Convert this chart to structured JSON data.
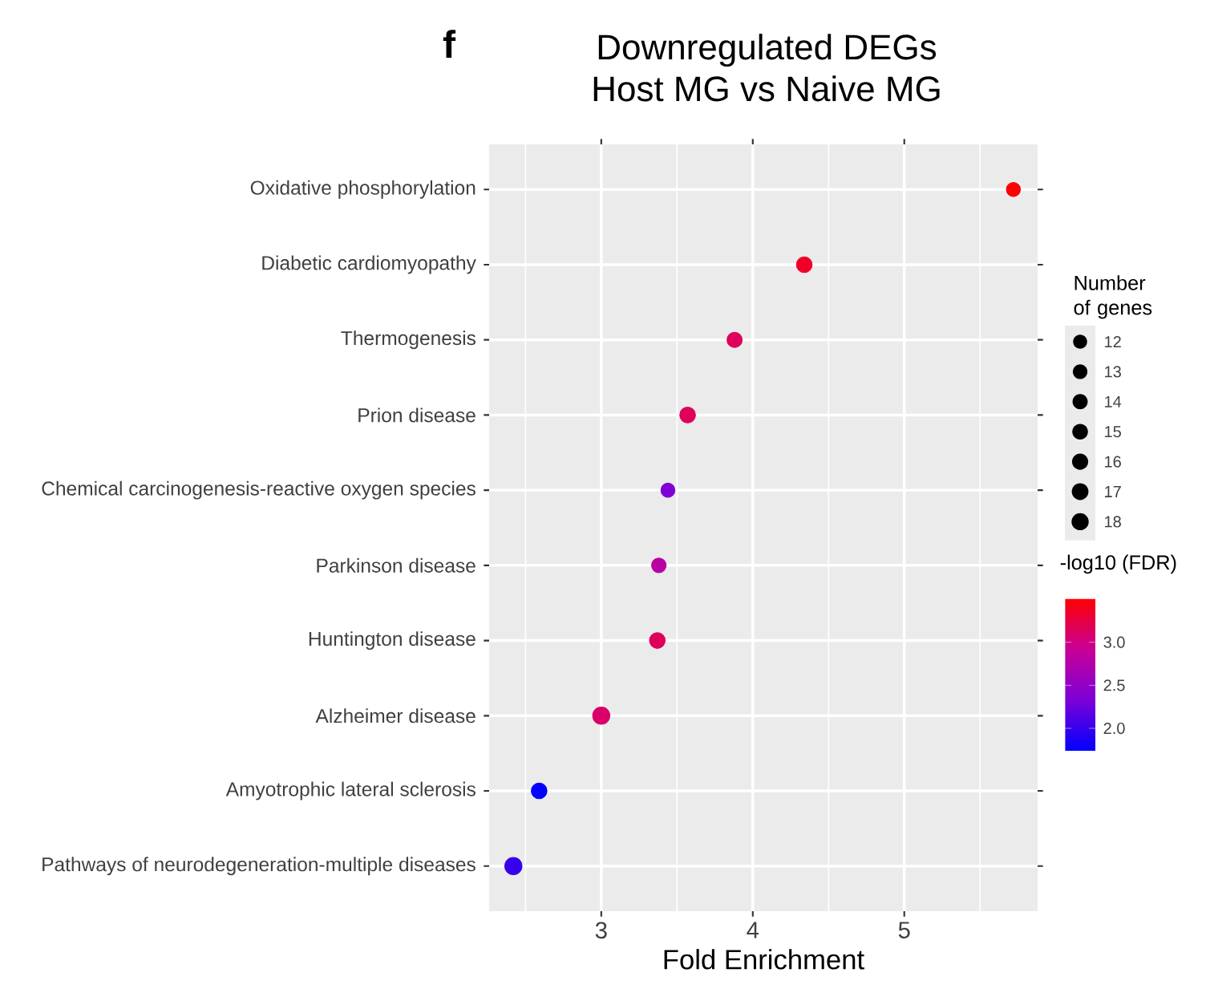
{
  "chart_data": {
    "type": "bubble",
    "title": "Downregulated DEGs",
    "subtitle": "Host MG vs Naive MG",
    "xlabel": "Fold Enrichment",
    "legend_title": "Number of genes",
    "clabel": "-log10 (FDR)",
    "annotations": [
      "f"
    ],
    "categories": [
      "Oxidative phosphorylation",
      "Diabetic cardiomyopathy",
      "Thermogenesis",
      "Prion disease",
      "Chemical carcinogenesis-reactive oxygen species",
      "Parkinson disease",
      "Huntington disease",
      "Alzheimer disease",
      "Amyotrophic lateral sclerosis",
      "Pathways of neurodegeneration-multiple diseases"
    ],
    "values": [
      5.72,
      4.34,
      3.88,
      3.57,
      3.44,
      3.38,
      3.37,
      3.0,
      2.59,
      2.42
    ],
    "sizes": [
      12,
      15,
      14,
      15,
      12,
      13,
      15,
      18,
      15,
      18
    ],
    "size_legend": [
      12,
      13,
      14,
      15,
      16,
      17,
      18
    ],
    "cvalues": [
      3.5,
      3.35,
      3.15,
      3.15,
      2.35,
      2.8,
      3.15,
      3.1,
      1.75,
      2.0
    ],
    "clim": [
      1.74,
      3.51
    ],
    "cticks": [
      {
        "value": 2.0,
        "label": "2.0"
      },
      {
        "value": 2.5,
        "label": "2.5"
      },
      {
        "value": 3.0,
        "label": "3.0"
      }
    ],
    "orientation": "horizontal",
    "xlim": [
      2.26,
      5.88
    ],
    "xticks": [
      3,
      4,
      5
    ],
    "grid": true,
    "marker": "circle"
  }
}
